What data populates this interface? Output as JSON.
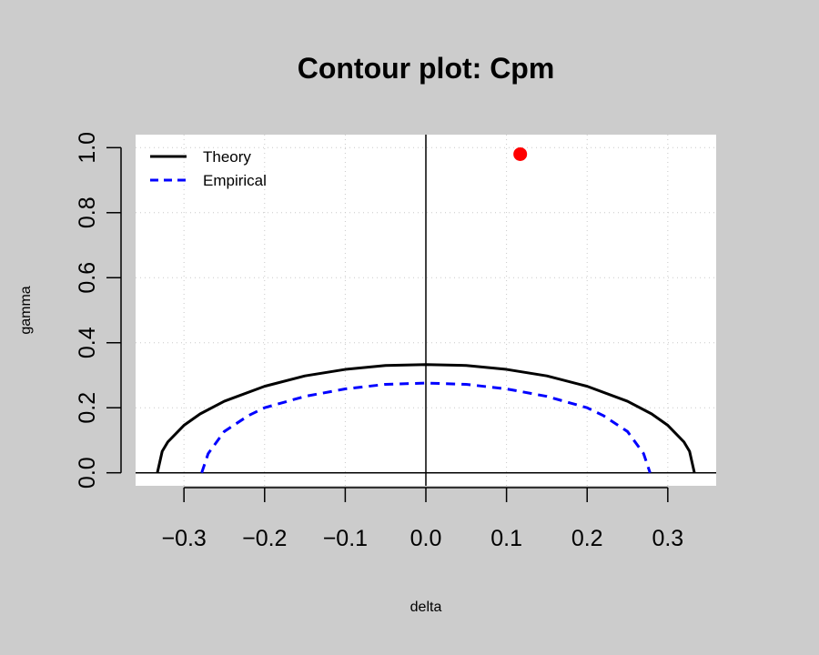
{
  "chart_data": {
    "type": "line",
    "title": "Contour plot: Cpm",
    "xlabel": "delta",
    "ylabel": "gamma",
    "xlim": [
      -0.36,
      0.36
    ],
    "ylim": [
      -0.04,
      1.04
    ],
    "x_ticks": [
      -0.3,
      -0.2,
      -0.1,
      0.0,
      0.1,
      0.2,
      0.3
    ],
    "x_tick_labels": [
      "−0.3",
      "−0.2",
      "−0.1",
      "0.0",
      "0.1",
      "0.2",
      "0.3"
    ],
    "y_ticks": [
      0.0,
      0.2,
      0.4,
      0.6,
      0.8,
      1.0
    ],
    "y_tick_labels": [
      "0.0",
      "0.2",
      "0.4",
      "0.6",
      "0.8",
      "1.0"
    ],
    "grid": true,
    "legend_position": "top-left",
    "series": [
      {
        "name": "Theory",
        "color": "#000000",
        "dash": "solid",
        "x": [
          -0.333,
          -0.327,
          -0.32,
          -0.3,
          -0.28,
          -0.25,
          -0.2,
          -0.15,
          -0.1,
          -0.05,
          0.0,
          0.05,
          0.1,
          0.15,
          0.2,
          0.25,
          0.28,
          0.3,
          0.32,
          0.327,
          0.333
        ],
        "y": [
          0.0,
          0.066,
          0.095,
          0.146,
          0.181,
          0.22,
          0.266,
          0.298,
          0.318,
          0.33,
          0.333,
          0.33,
          0.318,
          0.298,
          0.266,
          0.22,
          0.181,
          0.146,
          0.095,
          0.066,
          0.0
        ]
      },
      {
        "name": "Empirical",
        "color": "#0000ff",
        "dash": "dashed",
        "x": [
          -0.278,
          -0.27,
          -0.25,
          -0.22,
          -0.2,
          -0.15,
          -0.1,
          -0.05,
          0.0,
          0.05,
          0.1,
          0.15,
          0.2,
          0.22,
          0.25,
          0.27,
          0.278
        ],
        "y": [
          0.0,
          0.059,
          0.127,
          0.176,
          0.2,
          0.235,
          0.258,
          0.272,
          0.276,
          0.272,
          0.258,
          0.235,
          0.2,
          0.176,
          0.127,
          0.059,
          0.0
        ]
      }
    ],
    "points": [
      {
        "x": 0.117,
        "y": 0.98,
        "color": "#ff0000"
      }
    ],
    "reference_lines": {
      "vertical_x": 0.0,
      "horizontal_y": 0.0
    }
  }
}
